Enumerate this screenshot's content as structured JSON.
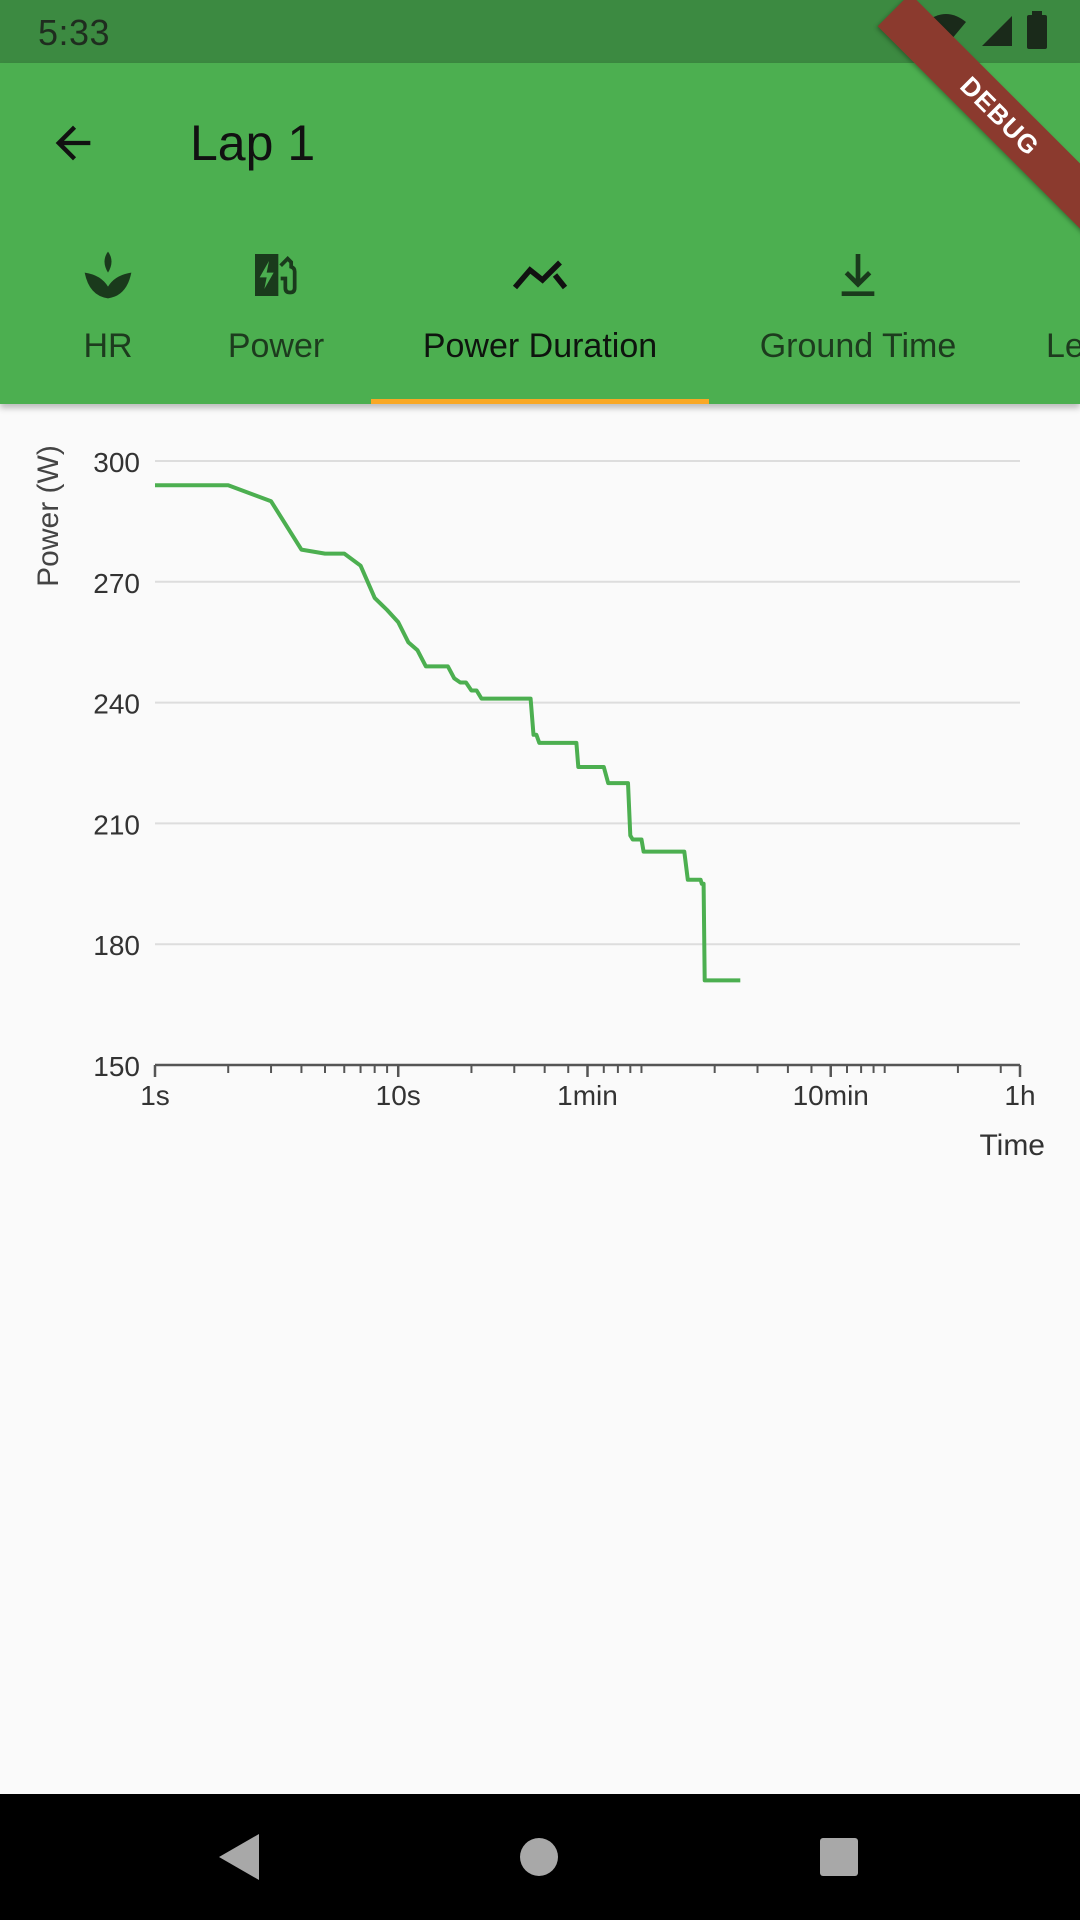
{
  "status": {
    "time": "5:33",
    "icons": [
      "wifi-icon",
      "signal-icon",
      "battery-icon"
    ]
  },
  "debug_label": "DEBUG",
  "appbar": {
    "title": "Lap 1",
    "back_icon": "arrow-back-icon",
    "background": "#4CAF50"
  },
  "tabs": [
    {
      "label": "HR",
      "icon": "spa-icon",
      "active": false
    },
    {
      "label": "Power",
      "icon": "ev-station-icon",
      "active": false
    },
    {
      "label": "Power Duration",
      "icon": "trending-up-icon",
      "active": true
    },
    {
      "label": "Ground Time",
      "icon": "download-icon",
      "active": false
    },
    {
      "label": "Le",
      "icon": "",
      "active": false
    }
  ],
  "chart_data": {
    "type": "line",
    "ylabel": "Power (W)",
    "xlabel": "Time",
    "ylim": [
      150,
      300
    ],
    "yticks": [
      150,
      180,
      210,
      240,
      270,
      300
    ],
    "x_scale": "log",
    "x_unit": "seconds",
    "xlim": [
      1,
      3600
    ],
    "xticks": [
      {
        "value": 1,
        "label": "1s"
      },
      {
        "value": 10,
        "label": "10s"
      },
      {
        "value": 60,
        "label": "1min"
      },
      {
        "value": 600,
        "label": "10min"
      },
      {
        "value": 3600,
        "label": "1h"
      }
    ],
    "grid": "horizontal",
    "line_color": "#4CAF50",
    "series": [
      {
        "points": [
          [
            1,
            294
          ],
          [
            2,
            294
          ],
          [
            3,
            290
          ],
          [
            4,
            278
          ],
          [
            5,
            277
          ],
          [
            6,
            277
          ],
          [
            7,
            274
          ],
          [
            8,
            266
          ],
          [
            9,
            263
          ],
          [
            10,
            260
          ],
          [
            11,
            255
          ],
          [
            12,
            253
          ],
          [
            13,
            249
          ],
          [
            16,
            249
          ],
          [
            17,
            246
          ],
          [
            18,
            245
          ],
          [
            19,
            245
          ],
          [
            20,
            243
          ],
          [
            21,
            243
          ],
          [
            22,
            241
          ],
          [
            35,
            241
          ],
          [
            36,
            232
          ],
          [
            37,
            232
          ],
          [
            38,
            230
          ],
          [
            54,
            230
          ],
          [
            55,
            224
          ],
          [
            70,
            224
          ],
          [
            73,
            220
          ],
          [
            88,
            220
          ],
          [
            90,
            207
          ],
          [
            92,
            206
          ],
          [
            100,
            206
          ],
          [
            102,
            203
          ],
          [
            150,
            203
          ],
          [
            155,
            196
          ],
          [
            175,
            196
          ],
          [
            177,
            195
          ],
          [
            180,
            195
          ],
          [
            182,
            171
          ],
          [
            255,
            171
          ]
        ]
      }
    ]
  }
}
